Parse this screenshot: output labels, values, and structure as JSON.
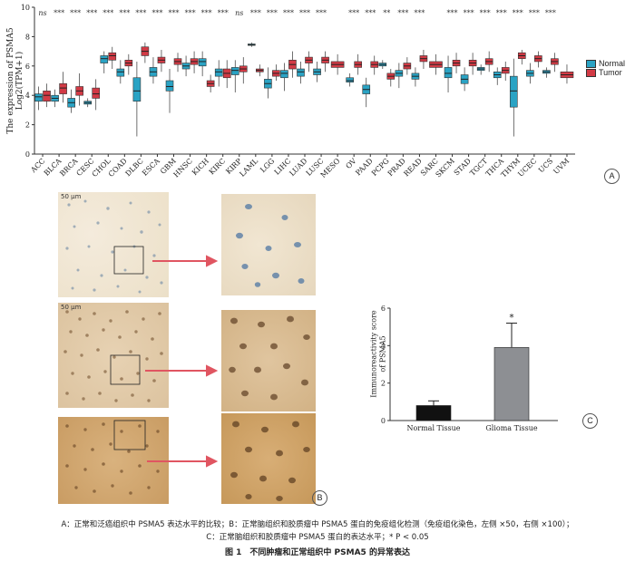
{
  "panel_a": {
    "label": "A",
    "ylabel_line1": "The expression of PSMA5",
    "ylabel_line2": "Log2(TPM+1)",
    "legend": [
      {
        "name": "Normal",
        "color": "#2aa3c4"
      },
      {
        "name": "Tumor",
        "color": "#d23a45"
      }
    ]
  },
  "panel_b": {
    "label": "B",
    "scale_bar": "50 μm"
  },
  "panel_c": {
    "label": "C",
    "ylabel_line1": "Immunoreactivity score",
    "ylabel_line2": "of PSMA5",
    "star": "*"
  },
  "caption": {
    "line1": "A：正常和泛癌组织中 PSMA5 表达水平的比较；B：正常脑组织和胶质瘤中 PSMA5 蛋白的免疫组化检测（免疫组化染色，左侧 ×50，右侧 ×100）；",
    "line2": "C：正常脑组织和胶质瘤中 PSMA5 蛋白的表达水平；* P < 0.05",
    "title": "图 1　不同肿瘤和正常组织中 PSMA5 的异常表达"
  },
  "chart_data": [
    {
      "type": "box",
      "ylim": [
        0,
        10
      ],
      "yticks": [
        0,
        2,
        4,
        6,
        8,
        10
      ],
      "grid": false,
      "legend_position": "right",
      "categories": [
        "ACC",
        "BLCA",
        "BRCA",
        "CESC",
        "CHOL",
        "COAD",
        "DLBC",
        "ESCA",
        "GBM",
        "HNSC",
        "KICH",
        "KIRC",
        "KIRP",
        "LAML",
        "LGG",
        "LIHC",
        "LUAD",
        "LUSC",
        "MESO",
        "OV",
        "PAAD",
        "PCPG",
        "PRAD",
        "READ",
        "SARC",
        "SKCM",
        "STAD",
        "TGCT",
        "THCA",
        "THYM",
        "UCEC",
        "UCS",
        "UVM"
      ],
      "significance": [
        "ns",
        "***",
        "***",
        "***",
        "***",
        "***",
        "***",
        "***",
        "***",
        "***",
        "***",
        "***",
        "ns",
        "***",
        "***",
        "***",
        "***",
        "***",
        "",
        "***",
        "***",
        "**",
        "***",
        "***",
        "",
        "***",
        "***",
        "***",
        "***",
        "***",
        "***",
        "***",
        ""
      ],
      "series": [
        {
          "name": "Normal",
          "boxes": [
            [
              3.0,
              3.6,
              3.9,
              4.1,
              4.6
            ],
            [
              3.2,
              3.6,
              3.8,
              4.0,
              4.4
            ],
            [
              2.8,
              3.2,
              3.5,
              3.8,
              4.4
            ],
            [
              3.2,
              3.4,
              3.5,
              3.6,
              3.8
            ],
            [
              5.5,
              6.2,
              6.5,
              6.7,
              7.0
            ],
            [
              4.8,
              5.3,
              5.6,
              5.8,
              6.4
            ],
            [
              1.2,
              3.6,
              4.3,
              5.2,
              6.3
            ],
            [
              4.8,
              5.3,
              5.6,
              5.9,
              6.6
            ],
            [
              2.8,
              4.3,
              4.6,
              5.0,
              5.8
            ],
            [
              5.3,
              5.8,
              6.0,
              6.2,
              6.7
            ],
            [
              5.3,
              6.0,
              6.3,
              6.5,
              7.0
            ],
            [
              4.6,
              5.3,
              5.6,
              5.8,
              6.4
            ],
            [
              4.2,
              5.4,
              5.7,
              5.9,
              6.4
            ],
            [
              7.3,
              7.4,
              7.45,
              7.5,
              7.6
            ],
            [
              3.8,
              4.5,
              4.8,
              5.1,
              5.9
            ],
            [
              4.3,
              5.2,
              5.5,
              5.7,
              6.2
            ],
            [
              4.8,
              5.3,
              5.6,
              5.8,
              6.3
            ],
            [
              4.9,
              5.4,
              5.6,
              5.8,
              6.3
            ],
            null,
            [
              4.6,
              4.9,
              5.0,
              5.2,
              5.5
            ],
            [
              3.2,
              4.1,
              4.4,
              4.7,
              5.2
            ],
            [
              5.8,
              6.0,
              6.1,
              6.2,
              6.4
            ],
            [
              4.5,
              5.3,
              5.5,
              5.7,
              6.2
            ],
            [
              4.6,
              5.1,
              5.3,
              5.5,
              5.9
            ],
            null,
            [
              4.2,
              5.2,
              5.5,
              5.9,
              6.7
            ],
            [
              4.3,
              4.8,
              5.1,
              5.4,
              5.9
            ],
            [
              5.4,
              5.7,
              5.8,
              5.9,
              6.1
            ],
            [
              4.7,
              5.2,
              5.4,
              5.6,
              5.9
            ],
            [
              1.2,
              3.2,
              4.3,
              5.3,
              6.5
            ],
            [
              4.8,
              5.3,
              5.5,
              5.7,
              6.2
            ],
            [
              5.2,
              5.5,
              5.6,
              5.7,
              5.9
            ],
            null
          ]
        },
        {
          "name": "Tumor",
          "boxes": [
            [
              3.2,
              3.6,
              4.0,
              4.3,
              4.8
            ],
            [
              3.5,
              4.1,
              4.5,
              4.8,
              5.6
            ],
            [
              3.3,
              4.0,
              4.3,
              4.6,
              5.5
            ],
            [
              3.0,
              3.8,
              4.1,
              4.5,
              5.1
            ],
            [
              5.8,
              6.4,
              6.7,
              6.9,
              7.3
            ],
            [
              5.4,
              6.0,
              6.2,
              6.4,
              6.8
            ],
            [
              6.2,
              6.7,
              7.0,
              7.3,
              7.6
            ],
            [
              5.6,
              6.2,
              6.4,
              6.6,
              7.1
            ],
            [
              5.6,
              6.1,
              6.3,
              6.5,
              6.9
            ],
            [
              5.5,
              6.1,
              6.3,
              6.5,
              7.0
            ],
            [
              4.2,
              4.6,
              4.8,
              5.0,
              5.4
            ],
            [
              4.5,
              5.2,
              5.5,
              5.8,
              6.4
            ],
            [
              4.8,
              5.6,
              5.8,
              6.0,
              6.6
            ],
            [
              5.3,
              5.6,
              5.7,
              5.8,
              6.1
            ],
            [
              5.0,
              5.3,
              5.5,
              5.7,
              6.1
            ],
            [
              5.2,
              5.8,
              6.1,
              6.4,
              7.0
            ],
            [
              5.6,
              6.2,
              6.4,
              6.6,
              7.0
            ],
            [
              5.6,
              6.2,
              6.4,
              6.6,
              7.0
            ],
            [
              5.4,
              5.9,
              6.1,
              6.3,
              6.8
            ],
            [
              5.4,
              5.9,
              6.1,
              6.3,
              6.8
            ],
            [
              5.4,
              5.9,
              6.1,
              6.3,
              6.7
            ],
            [
              4.6,
              5.1,
              5.3,
              5.5,
              5.8
            ],
            [
              5.4,
              5.8,
              6.0,
              6.2,
              6.6
            ],
            [
              5.8,
              6.3,
              6.5,
              6.7,
              7.1
            ],
            [
              5.4,
              5.9,
              6.1,
              6.3,
              6.8
            ],
            [
              5.5,
              6.0,
              6.2,
              6.4,
              6.9
            ],
            [
              5.4,
              6.0,
              6.2,
              6.4,
              6.9
            ],
            [
              5.6,
              6.1,
              6.3,
              6.5,
              7.0
            ],
            [
              5.0,
              5.5,
              5.7,
              5.9,
              6.3
            ],
            [
              6.1,
              6.5,
              6.7,
              6.9,
              7.1
            ],
            [
              5.9,
              6.3,
              6.5,
              6.7,
              7.0
            ],
            [
              5.6,
              6.1,
              6.3,
              6.5,
              6.9
            ],
            [
              4.8,
              5.2,
              5.4,
              5.6,
              6.1
            ]
          ]
        }
      ]
    },
    {
      "type": "bar",
      "categories": [
        "Normal Tissue",
        "Glioma Tissue"
      ],
      "values": [
        0.8,
        3.9
      ],
      "error": [
        0.25,
        1.3
      ],
      "ylim": [
        0,
        6
      ],
      "yticks": [
        0,
        2,
        4,
        6
      ],
      "colors": [
        "#111111",
        "#8d8f93"
      ],
      "annotations": [
        {
          "category": "Glioma Tissue",
          "text": "*"
        }
      ]
    }
  ]
}
